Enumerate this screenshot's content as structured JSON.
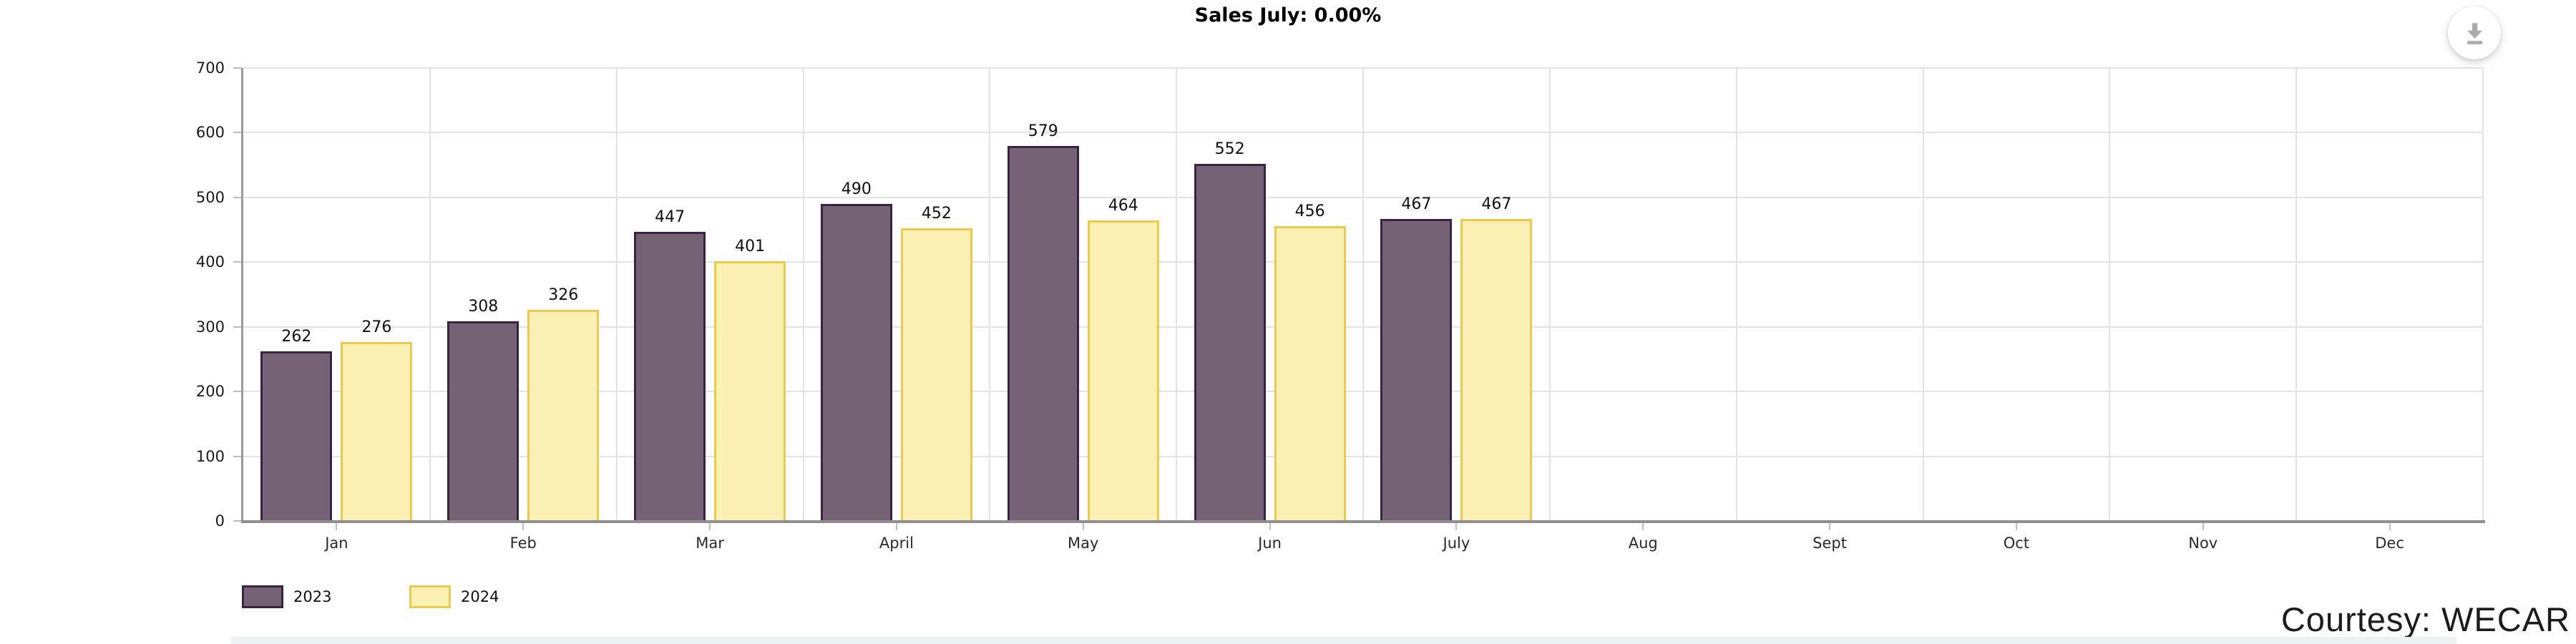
{
  "title": "Sales July: 0.00%",
  "toolbar": {
    "download_label": "download-chart"
  },
  "courtesy_text": "Courtesy: WECAR",
  "colors": {
    "series_2023_fill": "#756275",
    "series_2023_border": "#3a2342",
    "series_2024_fill": "#faf0b4",
    "series_2024_border": "#eec94f",
    "gridline": "#e3e3e3",
    "axis": "#9b9b9b",
    "download_icon": "#acacac",
    "bottom_bar": "#eef2f3"
  },
  "chart_data": {
    "type": "bar",
    "title": "Sales July: 0.00%",
    "categories": [
      "Jan",
      "Feb",
      "Mar",
      "April",
      "May",
      "Jun",
      "July",
      "Aug",
      "Sept",
      "Oct",
      "Nov",
      "Dec"
    ],
    "series": [
      {
        "name": "2023",
        "color": "#756275",
        "border": "#3a2342",
        "values": [
          262,
          308,
          447,
          490,
          579,
          552,
          467,
          null,
          null,
          null,
          null,
          null
        ]
      },
      {
        "name": "2024",
        "color": "#faf0b4",
        "border": "#eec94f",
        "values": [
          276,
          326,
          401,
          452,
          464,
          456,
          467,
          null,
          null,
          null,
          null,
          null
        ]
      }
    ],
    "xlabel": "",
    "ylabel": "",
    "ylim": [
      0,
      700
    ],
    "ytick_step": 100,
    "yticks": [
      0,
      100,
      200,
      300,
      400,
      500,
      600,
      700
    ],
    "grid": true,
    "value_labels": true,
    "legend_position": "bottom-left"
  }
}
